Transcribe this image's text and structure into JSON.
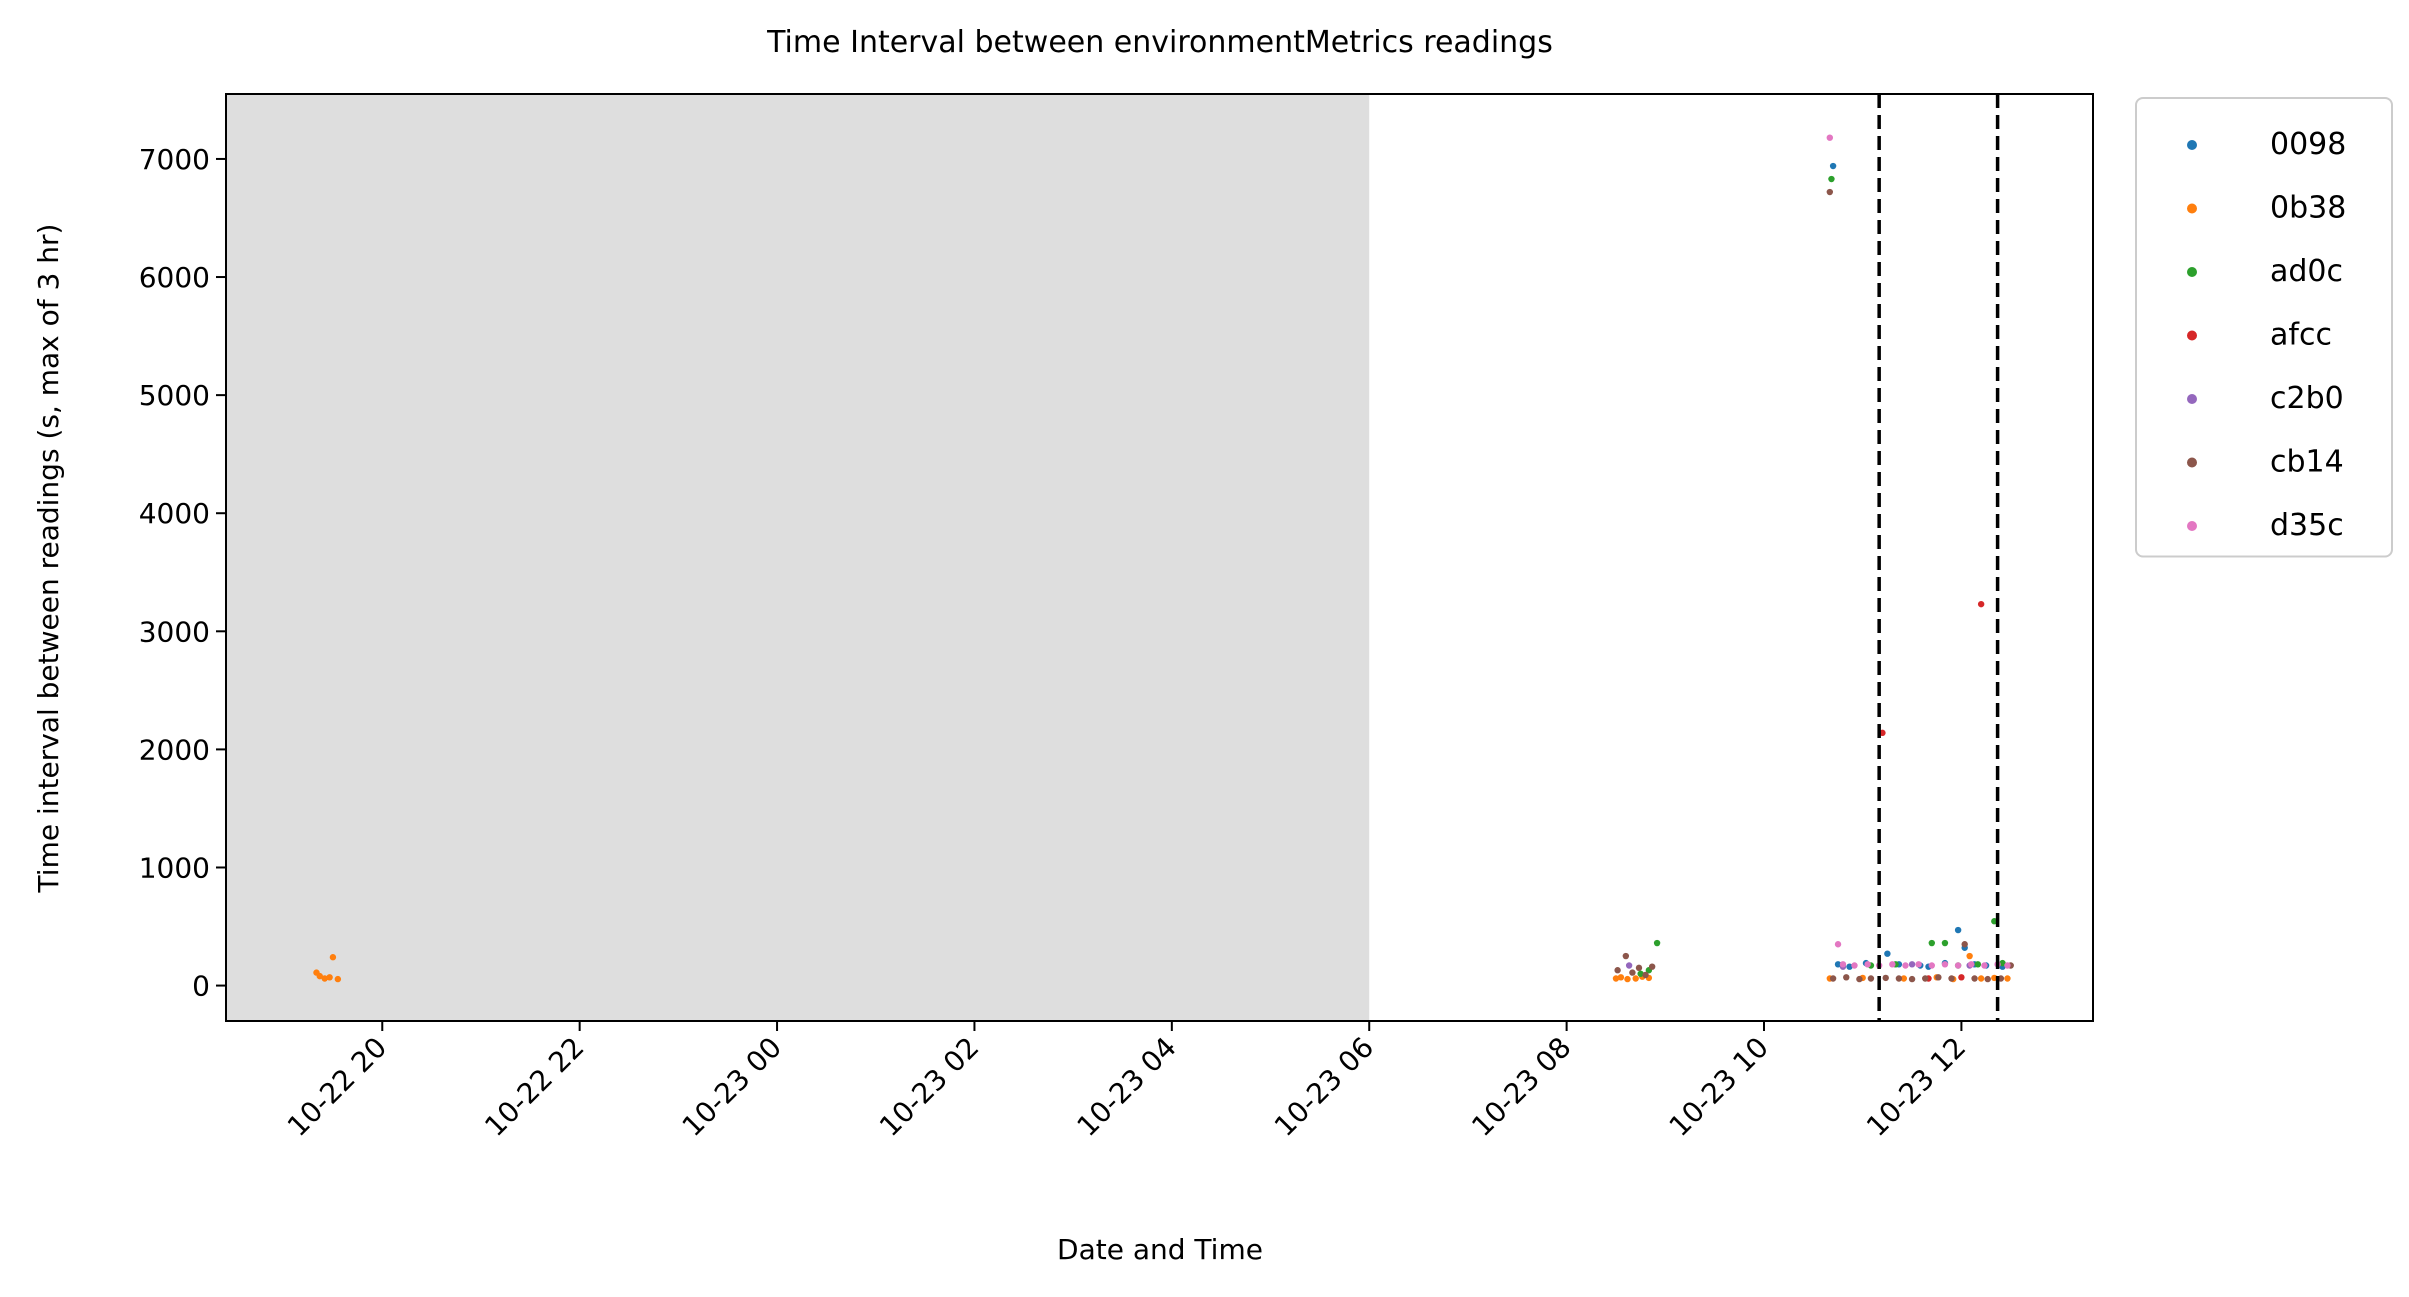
{
  "chart_data": {
    "type": "scatter",
    "title": "Time Interval between environmentMetrics readings",
    "xlabel": "Date and Time",
    "ylabel": "Time interval between readings (s, max of 3 hr)",
    "x_ticks": [
      "10-22 20",
      "10-22 22",
      "10-23 00",
      "10-23 02",
      "10-23 04",
      "10-23 06",
      "10-23 08",
      "10-23 10",
      "10-23 12"
    ],
    "xlim": [
      "2023-10-22 18:25",
      "2023-10-23 13:20"
    ],
    "y_ticks": [
      0,
      1000,
      2000,
      3000,
      4000,
      5000,
      6000,
      7000
    ],
    "ylim": [
      -300,
      7550
    ],
    "grid": false,
    "legend_position": "outside-right-top",
    "shaded_region": {
      "x_start": "2023-10-22 18:25",
      "x_end": "2023-10-23 06:00",
      "color": "#dedede"
    },
    "vertical_lines": [
      "2023-10-23 11:10",
      "2023-10-23 12:22"
    ],
    "series": [
      {
        "name": "0098",
        "color": "#1f77b4",
        "points": [
          [
            "2023-10-23 10:42",
            6940
          ],
          [
            "2023-10-23 10:45",
            180
          ],
          [
            "2023-10-23 10:52",
            160
          ],
          [
            "2023-10-23 11:02",
            190
          ],
          [
            "2023-10-23 11:15",
            270
          ],
          [
            "2023-10-23 11:22",
            180
          ],
          [
            "2023-10-23 11:35",
            170
          ],
          [
            "2023-10-23 11:40",
            160
          ],
          [
            "2023-10-23 11:50",
            190
          ],
          [
            "2023-10-23 11:58",
            470
          ],
          [
            "2023-10-23 12:02",
            320
          ],
          [
            "2023-10-23 12:08",
            180
          ],
          [
            "2023-10-23 12:15",
            170
          ],
          [
            "2023-10-23 12:25",
            160
          ]
        ]
      },
      {
        "name": "0b38",
        "color": "#ff7f0e",
        "points": [
          [
            "2023-10-22 19:20",
            110
          ],
          [
            "2023-10-22 19:22",
            80
          ],
          [
            "2023-10-22 19:25",
            60
          ],
          [
            "2023-10-22 19:28",
            70
          ],
          [
            "2023-10-22 19:30",
            240
          ],
          [
            "2023-10-22 19:33",
            55
          ],
          [
            "2023-10-23 08:30",
            60
          ],
          [
            "2023-10-23 08:33",
            70
          ],
          [
            "2023-10-23 08:37",
            55
          ],
          [
            "2023-10-23 08:42",
            60
          ],
          [
            "2023-10-23 08:46",
            75
          ],
          [
            "2023-10-23 08:50",
            65
          ],
          [
            "2023-10-23 10:40",
            60
          ],
          [
            "2023-10-23 11:00",
            65
          ],
          [
            "2023-10-23 11:25",
            60
          ],
          [
            "2023-10-23 11:45",
            70
          ],
          [
            "2023-10-23 11:55",
            55
          ],
          [
            "2023-10-23 12:05",
            250
          ],
          [
            "2023-10-23 12:12",
            60
          ],
          [
            "2023-10-23 12:20",
            65
          ],
          [
            "2023-10-23 12:28",
            60
          ]
        ]
      },
      {
        "name": "ad0c",
        "color": "#2ca02c",
        "points": [
          [
            "2023-10-23 08:45",
            100
          ],
          [
            "2023-10-23 08:50",
            130
          ],
          [
            "2023-10-23 08:55",
            360
          ],
          [
            "2023-10-23 10:41",
            6830
          ],
          [
            "2023-10-23 11:05",
            170
          ],
          [
            "2023-10-23 11:20",
            180
          ],
          [
            "2023-10-23 11:42",
            360
          ],
          [
            "2023-10-23 11:50",
            360
          ],
          [
            "2023-10-23 11:58",
            170
          ],
          [
            "2023-10-23 12:10",
            180
          ],
          [
            "2023-10-23 12:20",
            545
          ],
          [
            "2023-10-23 12:25",
            190
          ]
        ]
      },
      {
        "name": "afcc",
        "color": "#d62728",
        "points": [
          [
            "2023-10-23 11:12",
            2140
          ],
          [
            "2023-10-23 12:12",
            3230
          ],
          [
            "2023-10-23 11:40",
            60
          ],
          [
            "2023-10-23 12:00",
            70
          ]
        ]
      },
      {
        "name": "c2b0",
        "color": "#9467bd",
        "points": [
          [
            "2023-10-23 08:38",
            170
          ],
          [
            "2023-10-23 10:48",
            160
          ],
          [
            "2023-10-23 11:30",
            180
          ],
          [
            "2023-10-23 12:05",
            170
          ]
        ]
      },
      {
        "name": "cb14",
        "color": "#8c564b",
        "points": [
          [
            "2023-10-23 08:31",
            130
          ],
          [
            "2023-10-23 08:36",
            250
          ],
          [
            "2023-10-23 08:40",
            110
          ],
          [
            "2023-10-23 08:44",
            150
          ],
          [
            "2023-10-23 08:48",
            90
          ],
          [
            "2023-10-23 08:52",
            160
          ],
          [
            "2023-10-23 10:40",
            6720
          ],
          [
            "2023-10-23 10:42",
            60
          ],
          [
            "2023-10-23 10:50",
            70
          ],
          [
            "2023-10-23 10:58",
            55
          ],
          [
            "2023-10-23 11:05",
            60
          ],
          [
            "2023-10-23 11:14",
            65
          ],
          [
            "2023-10-23 11:22",
            60
          ],
          [
            "2023-10-23 11:30",
            55
          ],
          [
            "2023-10-23 11:38",
            60
          ],
          [
            "2023-10-23 11:46",
            70
          ],
          [
            "2023-10-23 11:54",
            60
          ],
          [
            "2023-10-23 12:02",
            350
          ],
          [
            "2023-10-23 12:08",
            60
          ],
          [
            "2023-10-23 12:16",
            55
          ],
          [
            "2023-10-23 12:24",
            60
          ],
          [
            "2023-10-23 12:30",
            170
          ]
        ]
      },
      {
        "name": "d35c",
        "color": "#e377c2",
        "points": [
          [
            "2023-10-23 10:40",
            7180
          ],
          [
            "2023-10-23 10:45",
            350
          ],
          [
            "2023-10-23 10:48",
            180
          ],
          [
            "2023-10-23 10:55",
            170
          ],
          [
            "2023-10-23 11:03",
            180
          ],
          [
            "2023-10-23 11:10",
            170
          ],
          [
            "2023-10-23 11:18",
            180
          ],
          [
            "2023-10-23 11:26",
            170
          ],
          [
            "2023-10-23 11:34",
            180
          ],
          [
            "2023-10-23 11:42",
            170
          ],
          [
            "2023-10-23 11:50",
            180
          ],
          [
            "2023-10-23 11:58",
            170
          ],
          [
            "2023-10-23 12:06",
            180
          ],
          [
            "2023-10-23 12:14",
            170
          ],
          [
            "2023-10-23 12:22",
            180
          ],
          [
            "2023-10-23 12:28",
            170
          ]
        ]
      }
    ]
  }
}
